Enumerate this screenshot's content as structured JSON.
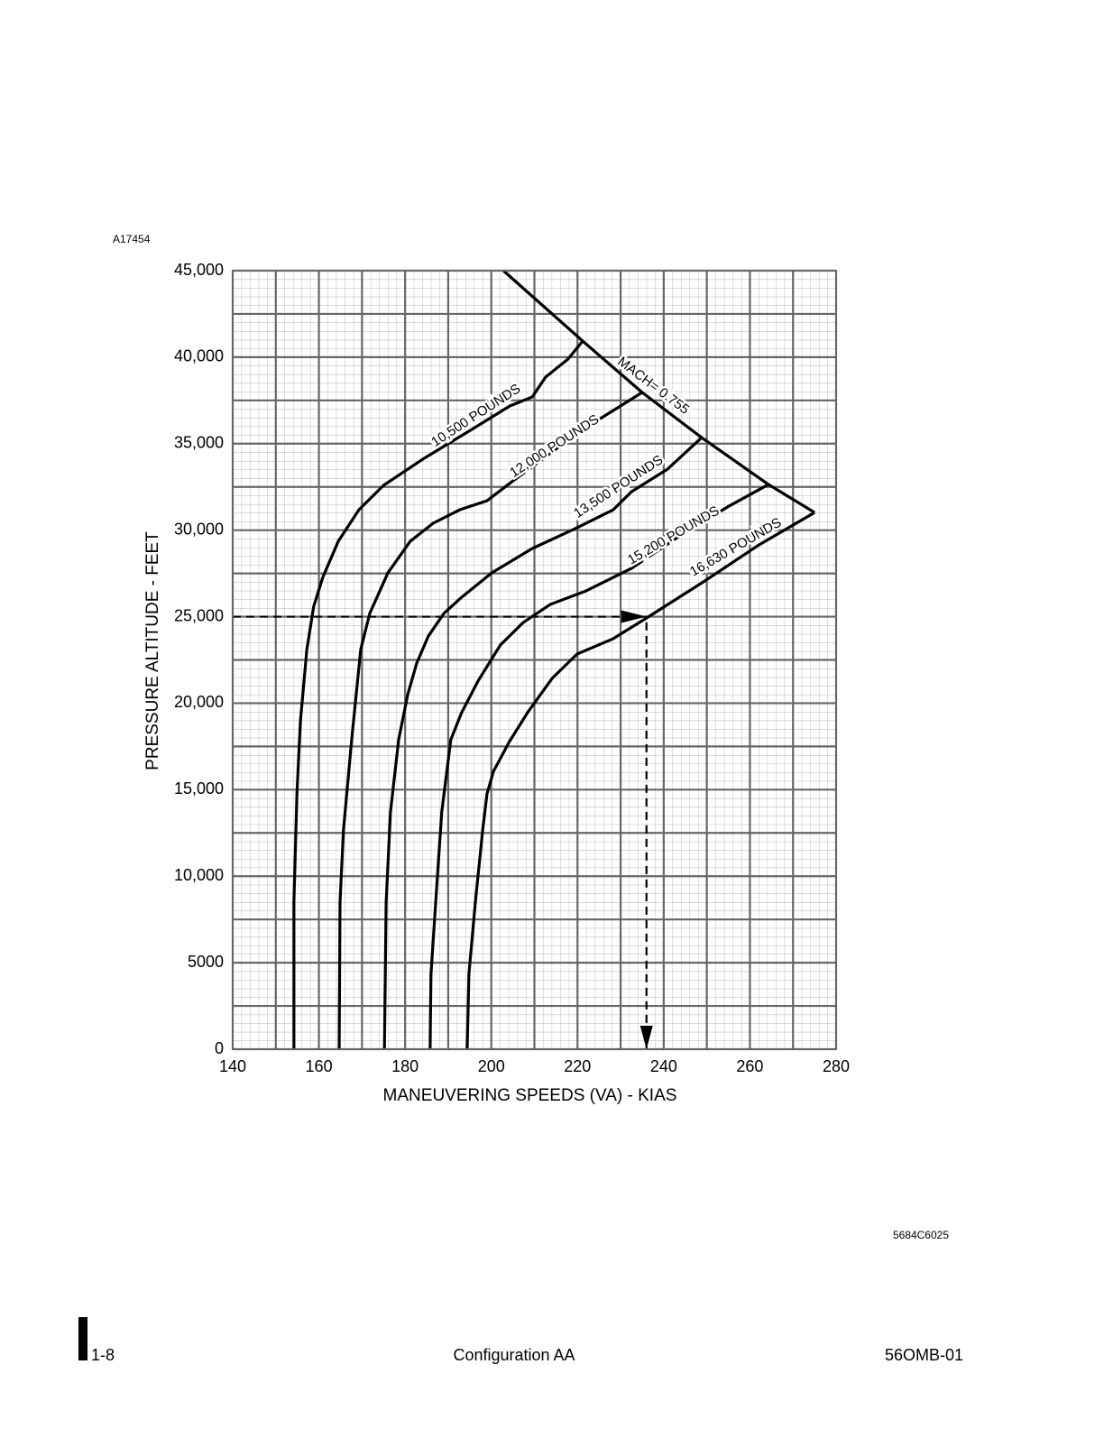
{
  "figure_id": "A17454",
  "chart_data": {
    "type": "line",
    "xlabel": "MANEUVERING SPEEDS (VA) - KIAS",
    "ylabel": "PRESSURE ALTITUDE - FEET",
    "xlim": [
      140,
      280
    ],
    "ylim": [
      0,
      45000
    ],
    "xticks": [
      140,
      160,
      180,
      200,
      220,
      240,
      260,
      280
    ],
    "yticks": [
      0,
      5000,
      {
        "value": 10000,
        "label": "10,000"
      },
      {
        "value": 15000,
        "label": "15,000"
      },
      {
        "value": 20000,
        "label": "20,000"
      },
      {
        "value": 25000,
        "label": "25,000"
      },
      {
        "value": 30000,
        "label": "30,000"
      },
      {
        "value": 35000,
        "label": "35,000"
      },
      {
        "value": 40000,
        "label": "40,000"
      },
      {
        "value": 45000,
        "label": "45,000"
      }
    ],
    "grid": true,
    "series": [
      {
        "name": "10,500 POUNDS",
        "color": "#000000",
        "x": [
          154.2,
          154.2,
          154.9,
          155.7,
          157.2,
          158.8,
          160.9,
          164.5,
          169.3,
          175,
          184.4,
          194.8,
          204.3,
          209.5,
          212.6,
          217.8,
          221.2
        ],
        "values": [
          0,
          8500,
          14760,
          18930,
          23100,
          25600,
          27270,
          29360,
          31180,
          32590,
          34150,
          35720,
          37180,
          37700,
          38850,
          39890,
          40930
        ]
      },
      {
        "name": "12,000 POUNDS",
        "color": "#000000",
        "x": [
          164.7,
          164.9,
          165.7,
          167.6,
          169.7,
          171.8,
          176,
          181.2,
          186.5,
          192.7,
          199,
          205.3,
          211.6,
          219.9,
          228.3,
          235
        ],
        "values": [
          0,
          8500,
          12670,
          17890,
          23100,
          25190,
          27530,
          29360,
          30400,
          31180,
          31700,
          32900,
          34050,
          35610,
          36920,
          37960
        ]
      },
      {
        "name": "13,500 POUNDS",
        "color": "#000000",
        "x": [
          175.2,
          175.6,
          176.6,
          178.5,
          180.6,
          182.7,
          185.4,
          189,
          193.1,
          200.1,
          209.5,
          219.9,
          228.3,
          232.5,
          240.9,
          248.8
        ],
        "values": [
          0,
          8500,
          13710,
          17890,
          20490,
          22320,
          23880,
          25190,
          26120,
          27530,
          28940,
          30140,
          31180,
          32220,
          33530,
          35350
        ]
      },
      {
        "name": "15,200 POUNDS",
        "color": "#000000",
        "x": [
          185.8,
          186,
          187.1,
          188.5,
          190.6,
          193.1,
          196.9,
          202.1,
          207.4,
          213.7,
          222,
          232.5,
          245,
          255.5,
          264.3
        ],
        "values": [
          0,
          4330,
          8500,
          13710,
          17890,
          19450,
          21270,
          23360,
          24660,
          25710,
          26490,
          27790,
          29880,
          31440,
          32640
        ]
      },
      {
        "name": "16,630 POUNDS",
        "color": "#000000",
        "x": [
          194.4,
          194.8,
          196.3,
          198,
          199,
          200.5,
          204.2,
          208.4,
          214.1,
          219.9,
          228.3,
          236.7,
          249.2,
          261.8,
          275
        ],
        "values": [
          0,
          4330,
          8500,
          12670,
          14760,
          16060,
          17780,
          19450,
          21430,
          22840,
          23730,
          25030,
          27010,
          29100,
          31020
        ]
      },
      {
        "name": "MACH= 0.755",
        "color": "#000000",
        "x": [
          202.8,
          221.2,
          235,
          248.8,
          264.3,
          275
        ],
        "values": [
          45000,
          40930,
          37960,
          35350,
          32640,
          31020
        ]
      }
    ],
    "example_path": {
      "x": [
        140,
        236,
        236
      ],
      "values": [
        25000,
        25000,
        0
      ]
    }
  },
  "drawing_number": "5684C6025",
  "footer": {
    "page": "1-8",
    "center": "Configuration AA",
    "doc": "56OMB-01"
  }
}
